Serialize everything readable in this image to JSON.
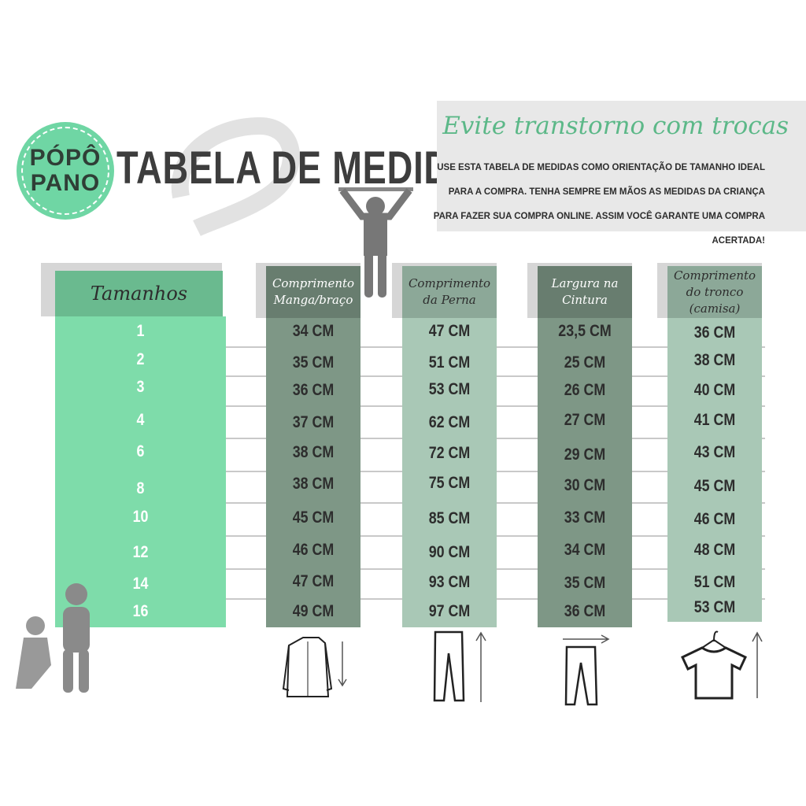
{
  "logo": {
    "line1": "PÓPÔ",
    "line2": "PANO"
  },
  "title": "TABELA DE MEDIDAS",
  "notice": {
    "title": "Evite transtorno com trocas",
    "text": "USE ESTA TABELA DE MEDIDAS COMO ORIENTAÇÃO DE TAMANHO IDEAL PARA A COMPRA. TENHA SEMPRE EM MÃOS AS MEDIDAS DA CRIANÇA PARA FAZER SUA COMPRA ONLINE. ASSIM VOCÊ GARANTE UMA COMPRA ACERTADA!"
  },
  "colors": {
    "sizes_header": "#6aba8f",
    "sizes_body": "#7edcaa",
    "dark_header": "#687d6f",
    "dark_body": "#7e9786",
    "light_header": "#8ca898",
    "light_body": "#a9c8b6",
    "notice_title": "#5cb888"
  },
  "table": {
    "sizes": {
      "header": "Tamanhos",
      "values": [
        "1",
        "2",
        "3",
        "4",
        "6",
        "8",
        "10",
        "12",
        "14",
        "16"
      ]
    },
    "columns": [
      {
        "header": "Comprimento Manga/braço",
        "icon": "shirt-icon",
        "values": [
          "34 CM",
          "35 CM",
          "36 CM",
          "37 CM",
          "38 CM",
          "38 CM",
          "45 CM",
          "46 CM",
          "47 CM",
          "49 CM"
        ]
      },
      {
        "header": "Comprimento da Perna",
        "icon": "pants-length-icon",
        "values": [
          "47 CM",
          "51 CM",
          "53 CM",
          "62 CM",
          "72 CM",
          "75 CM",
          "85 CM",
          "90 CM",
          "93 CM",
          "97 CM"
        ]
      },
      {
        "header": "Largura na Cintura",
        "icon": "pants-waist-icon",
        "values": [
          "23,5 CM",
          "25 CM",
          "26 CM",
          "27 CM",
          "29 CM",
          "30 CM",
          "33 CM",
          "34 CM",
          "35 CM",
          "36 CM"
        ]
      },
      {
        "header": "Comprimento do tronco (camisa)",
        "icon": "tshirt-hanger-icon",
        "values": [
          "36 CM",
          "38 CM",
          "40 CM",
          "41 CM",
          "43 CM",
          "45 CM",
          "46 CM",
          "48 CM",
          "51 CM",
          "53 CM"
        ]
      }
    ]
  }
}
